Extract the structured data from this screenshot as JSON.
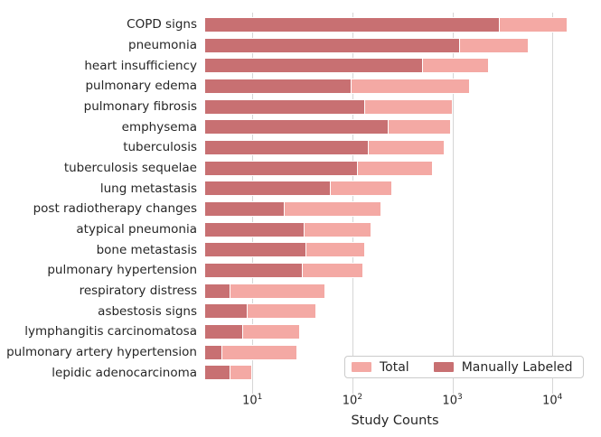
{
  "figure": {
    "background": "#ffffff",
    "text_color": "#262626",
    "grid_color": "#d6d6d6",
    "legend_border_color": "#cbcbcb"
  },
  "chart_data": {
    "type": "bar",
    "orientation": "horizontal",
    "xscale": "log",
    "grid": true,
    "xlabel": "Study Counts",
    "xlim": [
      3.3,
      21500
    ],
    "legend_position": "lower right",
    "legend_labels": [
      "Total",
      "Manually Labeled"
    ],
    "xticks": [
      {
        "base": "10",
        "exp": 1
      },
      {
        "base": "10",
        "exp": 2
      },
      {
        "base": "10",
        "exp": 3
      },
      {
        "base": "10",
        "exp": 4
      }
    ],
    "categories": [
      "COPD signs",
      "pneumonia",
      "heart insufficiency",
      "pulmonary edema",
      "pulmonary fibrosis",
      "emphysema",
      "tuberculosis",
      "tuberculosis sequelae",
      "lung metastasis",
      "post radiotherapy changes",
      "atypical pneumonia",
      "bone metastasis",
      "pulmonary hypertension",
      "respiratory distress",
      "asbestosis signs",
      "lymphangitis carcinomatosa",
      "pulmonary artery hypertension",
      "lepidic adenocarcinoma"
    ],
    "series": [
      {
        "name": "Total",
        "color": "#f4a9a4",
        "values": [
          14300,
          5800,
          2300,
          1490,
          1000,
          965,
          830,
          645,
          250,
          196,
          155,
          133,
          128,
          54,
          44,
          30,
          28,
          10
        ]
      },
      {
        "name": "Manually Labeled",
        "color": "#c87072",
        "values": [
          3000,
          1190,
          505,
          99,
          133,
          232,
          147,
          113,
          61,
          21,
          33,
          35,
          32,
          6,
          9,
          8,
          5,
          6
        ]
      }
    ]
  }
}
